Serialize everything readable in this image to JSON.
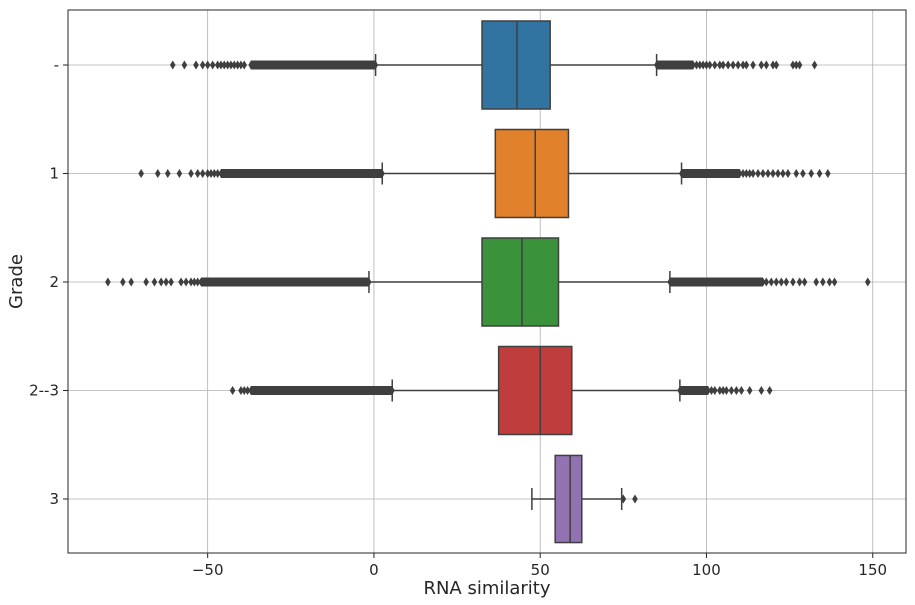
{
  "chart_data": {
    "type": "boxplot",
    "orientation": "horizontal",
    "xlabel": "RNA similarity",
    "ylabel": "Grade",
    "xlim": [
      -92,
      160
    ],
    "xticks": [
      -50,
      0,
      50,
      100,
      150
    ],
    "xtick_labels": [
      "−50",
      "0",
      "50",
      "100",
      "150"
    ],
    "grid": true,
    "legend": "none",
    "categories": [
      "-",
      "1",
      "2",
      "2--3",
      "3"
    ],
    "boxes": [
      {
        "category": "-",
        "color": "#3274a1",
        "whisker_low": 0.5,
        "q1": 32.5,
        "median": 43,
        "q3": 53,
        "whisker_high": 85,
        "outliers_low_dense": [
          -37,
          0.5
        ],
        "outliers_low": [
          -60.5,
          -57,
          -53.5,
          -51.5,
          -50,
          -48.5,
          -47,
          -46,
          -45,
          -44,
          -43,
          -42,
          -41,
          -40,
          -39
        ],
        "outliers_high_dense": [
          85,
          96
        ],
        "outliers_high": [
          97,
          98,
          99,
          100,
          101,
          102.5,
          104,
          105,
          106.5,
          108,
          109.5,
          111,
          112,
          114,
          116.5,
          118,
          120,
          121,
          126,
          127,
          128,
          132.5
        ]
      },
      {
        "category": "1",
        "color": "#e1812c",
        "whisker_low": 2.5,
        "q1": 36.5,
        "median": 48.5,
        "q3": 58.5,
        "whisker_high": 92.5,
        "outliers_low_dense": [
          -46,
          2.5
        ],
        "outliers_low": [
          -70,
          -65,
          -62,
          -58.5,
          -55,
          -53,
          -51.5,
          -50,
          -49,
          -48,
          -47
        ],
        "outliers_high_dense": [
          92.5,
          110
        ],
        "outliers_high": [
          111,
          112,
          113,
          114,
          115.5,
          117,
          118.5,
          120,
          121.5,
          123,
          124.5,
          127,
          129,
          131.5,
          134,
          136.5
        ]
      },
      {
        "category": "2",
        "color": "#3a923a",
        "whisker_low": -1.5,
        "q1": 32.5,
        "median": 44.5,
        "q3": 55.5,
        "whisker_high": 89,
        "outliers_low_dense": [
          -52,
          -1.5
        ],
        "outliers_low": [
          -80,
          -75.5,
          -73,
          -68.5,
          -66,
          -64,
          -62.5,
          -61,
          -58,
          -56.5,
          -55,
          -54,
          -53
        ],
        "outliers_high_dense": [
          89,
          117
        ],
        "outliers_high": [
          118,
          119.5,
          121,
          122.5,
          124,
          126,
          128,
          129.5,
          133,
          135,
          137,
          138.5,
          148.5
        ]
      },
      {
        "category": "2--3",
        "color": "#c03d3e",
        "whisker_low": 5.5,
        "q1": 37.5,
        "median": 50,
        "q3": 59.5,
        "whisker_high": 92,
        "outliers_low_dense": [
          -37,
          5.5
        ],
        "outliers_low": [
          -42.5,
          -40,
          -39,
          -38
        ],
        "outliers_high_dense": [
          92,
          100.5
        ],
        "outliers_high": [
          101.5,
          102.5,
          104,
          105,
          106,
          107.5,
          109,
          110.5,
          113,
          116.5,
          119
        ]
      },
      {
        "category": "3",
        "color": "#9372b2",
        "whisker_low": 47.5,
        "q1": 54.5,
        "median": 59,
        "q3": 62.5,
        "whisker_high": 74.5,
        "outliers_low_dense": null,
        "outliers_low": [],
        "outliers_high_dense": null,
        "outliers_high": [
          75,
          78.5
        ]
      }
    ]
  }
}
